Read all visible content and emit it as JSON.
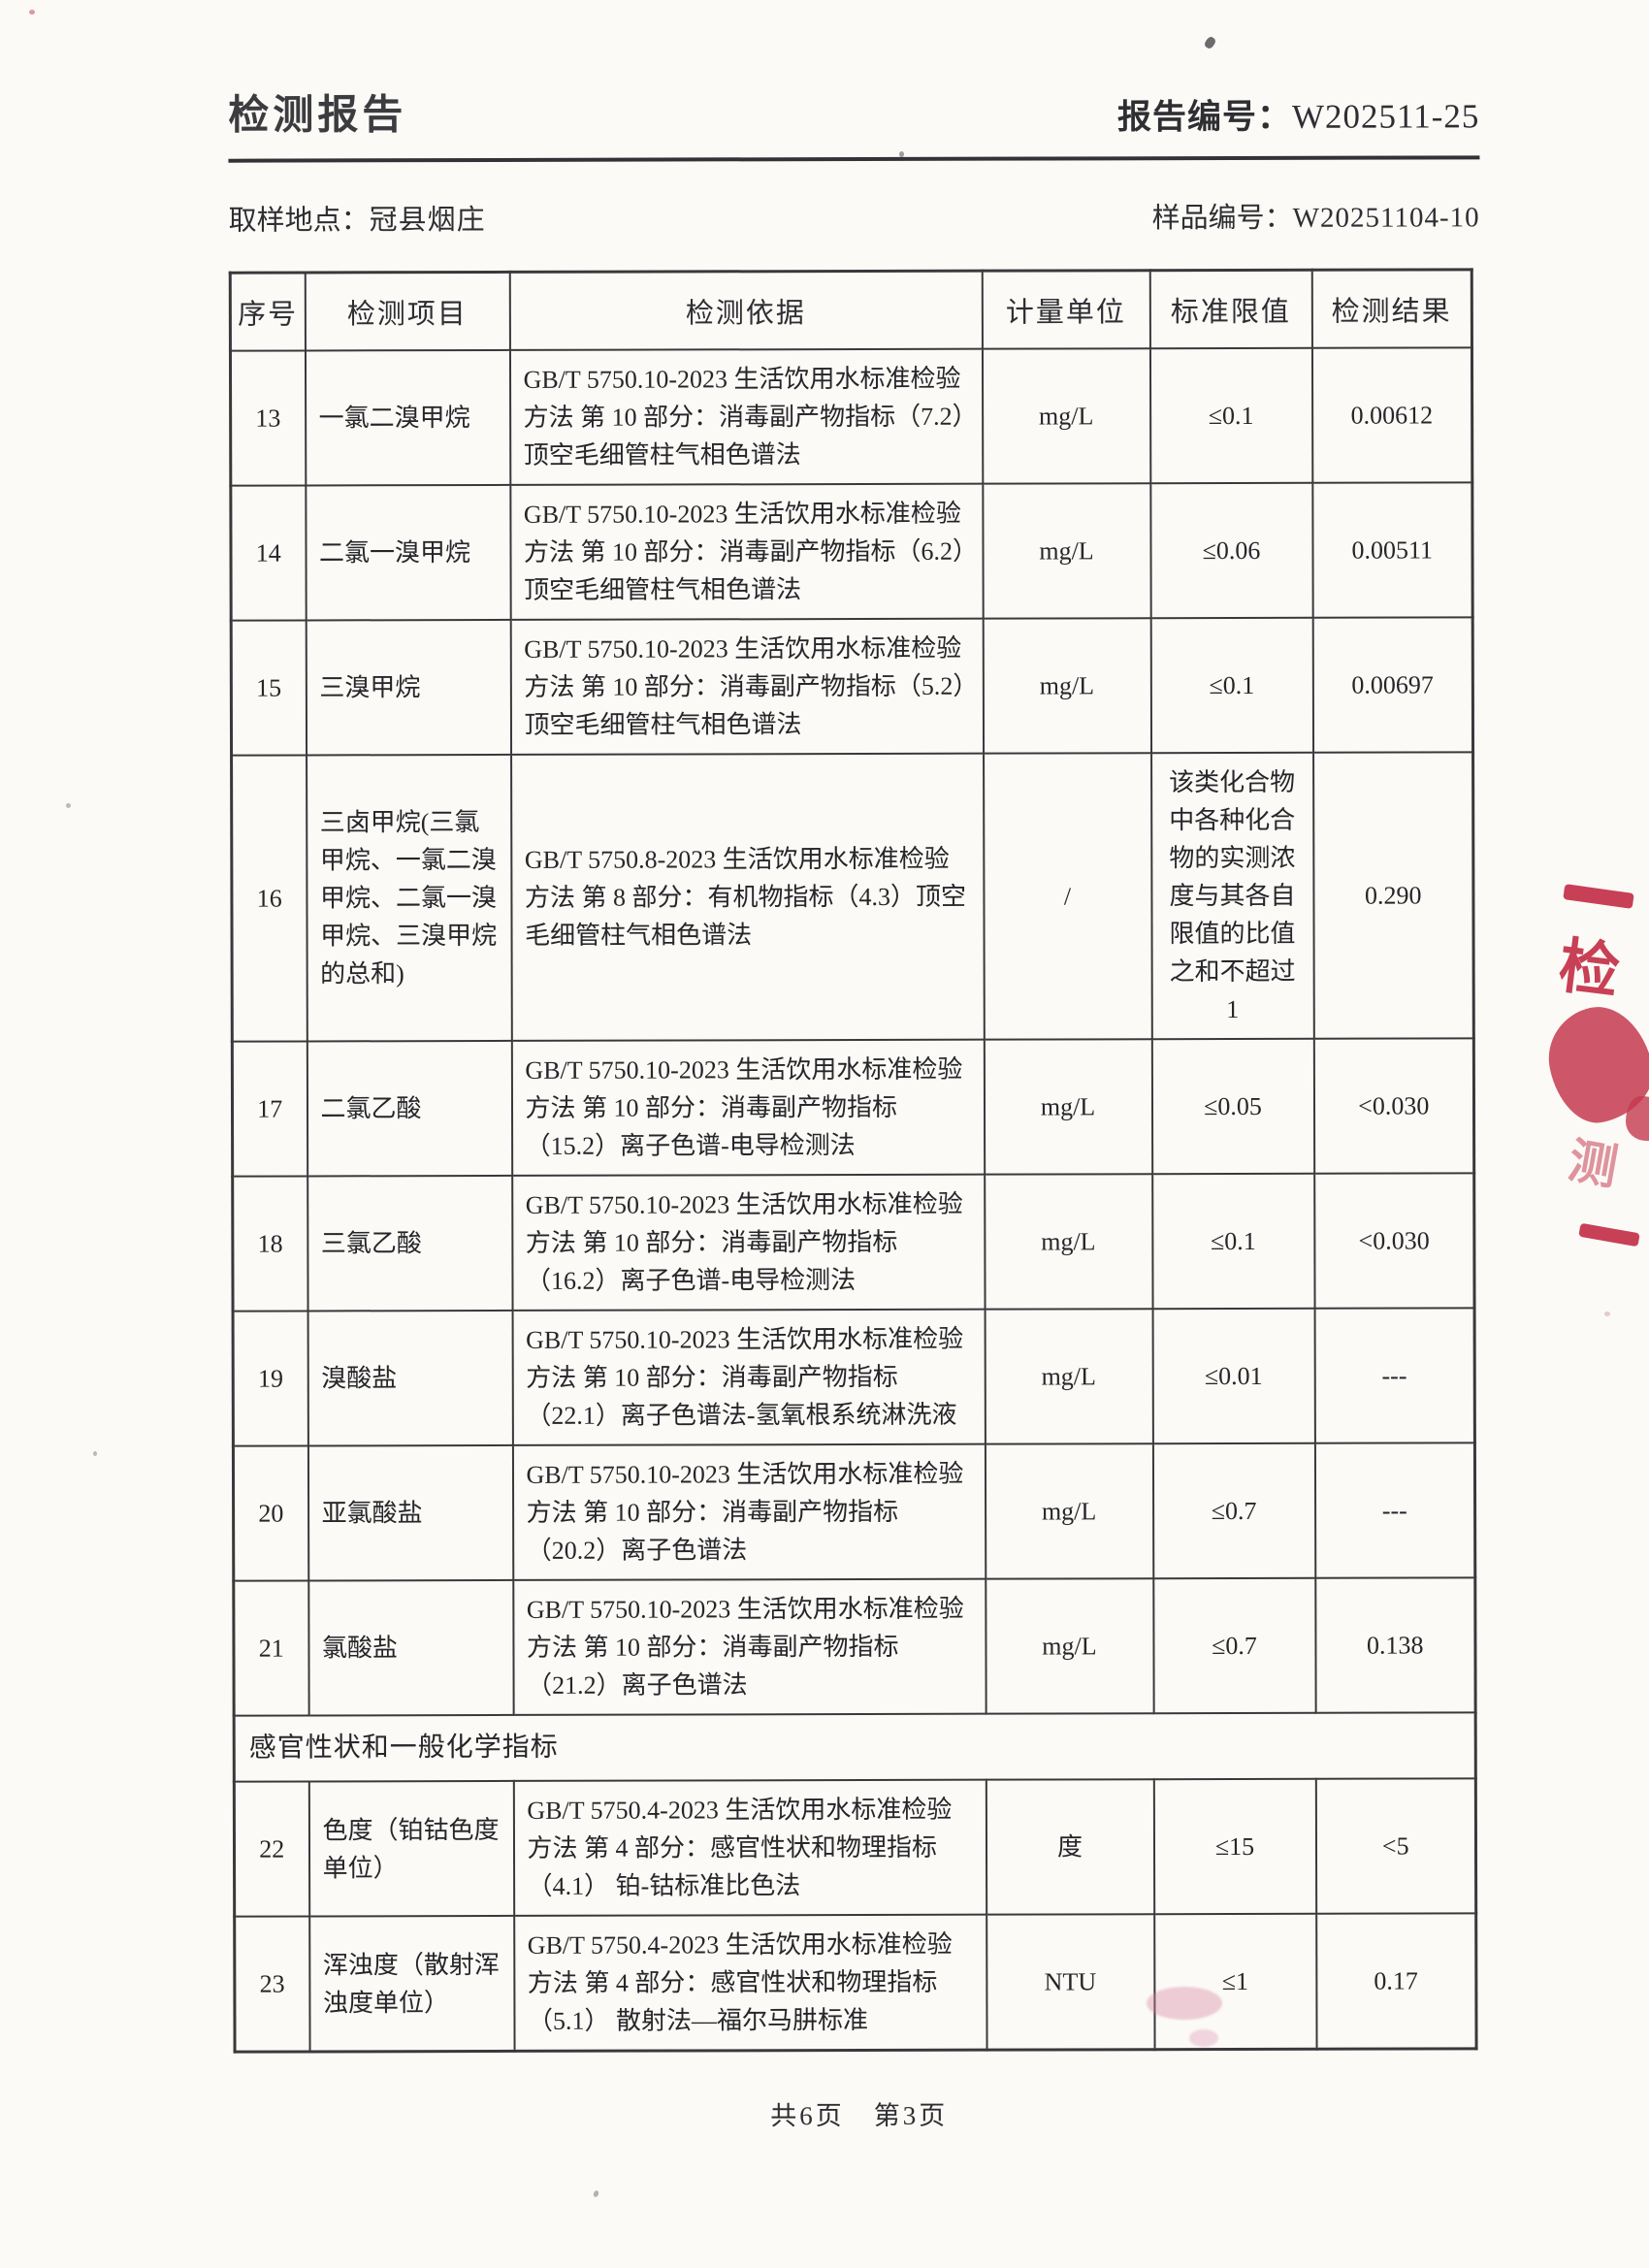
{
  "header": {
    "title": "检测报告",
    "report_no_label": "报告编号：",
    "report_no": "W202511-25"
  },
  "meta": {
    "sampling_location_label": "取样地点：",
    "sampling_location": "冠县烟庄",
    "sample_no_label": "样品编号：",
    "sample_no": "W20251104-10"
  },
  "table": {
    "columns": [
      "序号",
      "检测项目",
      "检测依据",
      "计量单位",
      "标准限值",
      "检测结果"
    ],
    "rows": [
      {
        "no": "13",
        "item": "一氯二溴甲烷",
        "method": "GB/T 5750.10-2023 生活饮用水标准检验方法 第 10 部分：消毒副产物指标（7.2）顶空毛细管柱气相色谱法",
        "unit": "mg/L",
        "limit": "≤0.1",
        "result": "0.00612"
      },
      {
        "no": "14",
        "item": "二氯一溴甲烷",
        "method": "GB/T 5750.10-2023 生活饮用水标准检验方法 第 10 部分：消毒副产物指标（6.2）顶空毛细管柱气相色谱法",
        "unit": "mg/L",
        "limit": "≤0.06",
        "result": "0.00511"
      },
      {
        "no": "15",
        "item": "三溴甲烷",
        "method": "GB/T 5750.10-2023 生活饮用水标准检验方法 第 10 部分：消毒副产物指标（5.2）顶空毛细管柱气相色谱法",
        "unit": "mg/L",
        "limit": "≤0.1",
        "result": "0.00697"
      },
      {
        "no": "16",
        "item": "三卤甲烷(三氯甲烷、一氯二溴甲烷、二氯一溴甲烷、三溴甲烷的总和)",
        "method": "GB/T 5750.8-2023 生活饮用水标准检验方法 第 8 部分：有机物指标（4.3）顶空毛细管柱气相色谱法",
        "unit": "/",
        "limit": "该类化合物中各种化合物的实测浓度与其各自限值的比值之和不超过 1",
        "result": "0.290"
      },
      {
        "no": "17",
        "item": "二氯乙酸",
        "method": "GB/T 5750.10-2023 生活饮用水标准检验方法 第 10 部分：消毒副产物指标（15.2）离子色谱-电导检测法",
        "unit": "mg/L",
        "limit": "≤0.05",
        "result": "<0.030"
      },
      {
        "no": "18",
        "item": "三氯乙酸",
        "method": "GB/T 5750.10-2023 生活饮用水标准检验方法 第 10 部分：消毒副产物指标（16.2）离子色谱-电导检测法",
        "unit": "mg/L",
        "limit": "≤0.1",
        "result": "<0.030"
      },
      {
        "no": "19",
        "item": "溴酸盐",
        "method": "GB/T 5750.10-2023 生活饮用水标准检验方法 第 10 部分：消毒副产物指标（22.1）离子色谱法-氢氧根系统淋洗液",
        "unit": "mg/L",
        "limit": "≤0.01",
        "result": "---"
      },
      {
        "no": "20",
        "item": "亚氯酸盐",
        "method": "GB/T 5750.10-2023 生活饮用水标准检验方法 第 10 部分：消毒副产物指标（20.2）离子色谱法",
        "unit": "mg/L",
        "limit": "≤0.7",
        "result": "---"
      },
      {
        "no": "21",
        "item": "氯酸盐",
        "method": "GB/T 5750.10-2023 生活饮用水标准检验方法 第 10 部分：消毒副产物指标（21.2）离子色谱法",
        "unit": "mg/L",
        "limit": "≤0.7",
        "result": "0.138"
      },
      {
        "section": "感官性状和一般化学指标"
      },
      {
        "no": "22",
        "item": "色度（铂钴色度单位）",
        "method": "GB/T 5750.4-2023 生活饮用水标准检验方法 第 4 部分：感官性状和物理指标（4.1） 铂-钴标准比色法",
        "unit": "度",
        "limit": "≤15",
        "result": "<5"
      },
      {
        "no": "23",
        "item": "浑浊度（散射浑浊度单位）",
        "method": "GB/T 5750.4-2023 生活饮用水标准检验方法 第 4 部分：感官性状和物理指标（5.1） 散射法—福尔马肼标准",
        "unit": "NTU",
        "limit": "≤1",
        "result": "0.17"
      }
    ]
  },
  "footer": {
    "pagination": "共6页　第3页"
  },
  "stamp": {
    "char_top": "检",
    "char_bottom": "测",
    "color": "#c84056"
  }
}
